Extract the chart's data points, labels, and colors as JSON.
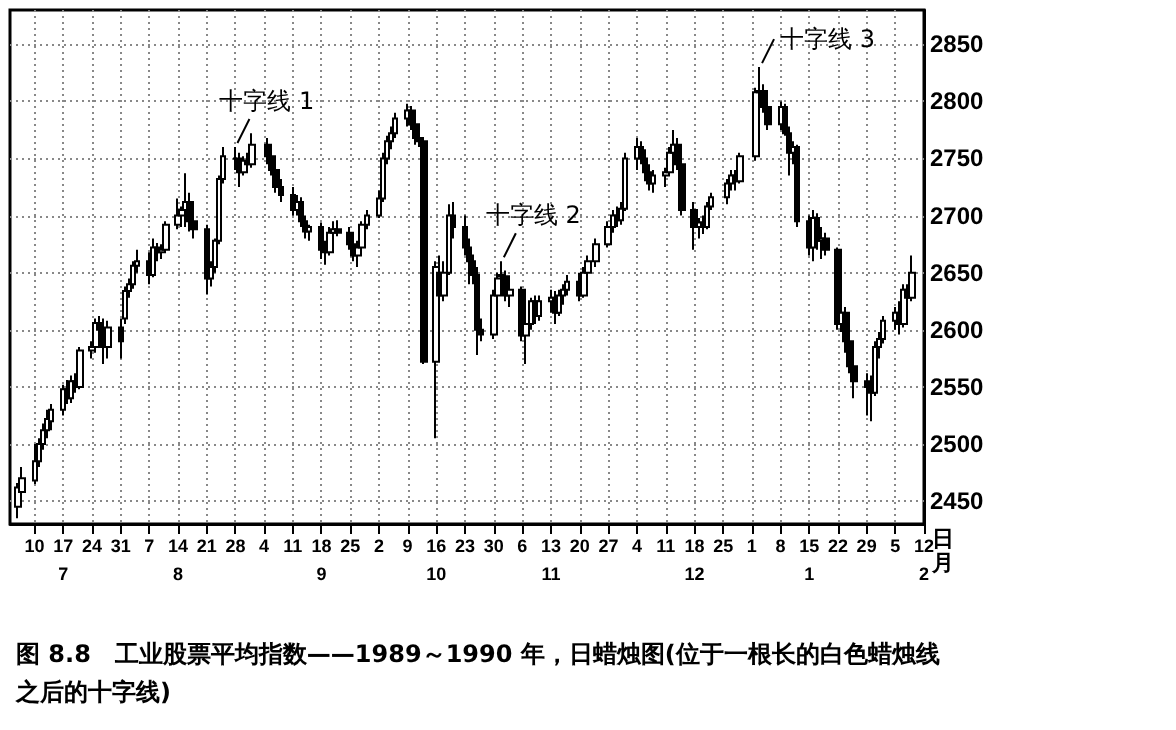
{
  "chart_data": {
    "type": "candlestick",
    "title": "图 8.8　工业股票平均指数——1989～1990 年，日蜡烛图(位于一根长的白色蜡烛线之后的十字线)",
    "xlabel": "日月",
    "color": "#000000",
    "x": [
      "1989-07-06",
      "1989-07-07",
      "1989-07-10",
      "1989-07-11",
      "1989-07-12",
      "1989-07-13",
      "1989-07-14",
      "1989-07-17",
      "1989-07-18",
      "1989-07-19",
      "1989-07-20",
      "1989-07-21",
      "1989-07-24",
      "1989-07-25",
      "1989-07-26",
      "1989-07-27",
      "1989-07-28",
      "1989-07-31",
      "1989-08-01",
      "1989-08-02",
      "1989-08-03",
      "1989-08-04",
      "1989-08-07",
      "1989-08-08",
      "1989-08-09",
      "1989-08-10",
      "1989-08-11",
      "1989-08-14",
      "1989-08-15",
      "1989-08-16",
      "1989-08-17",
      "1989-08-18",
      "1989-08-21",
      "1989-08-22",
      "1989-08-23",
      "1989-08-24",
      "1989-08-25",
      "1989-08-28",
      "1989-08-29",
      "1989-08-30",
      "1989-08-31",
      "1989-09-01",
      "1989-09-05",
      "1989-09-06",
      "1989-09-07",
      "1989-09-08",
      "1989-09-11",
      "1989-09-12",
      "1989-09-13",
      "1989-09-14",
      "1989-09-15",
      "1989-09-18",
      "1989-09-19",
      "1989-09-20",
      "1989-09-21",
      "1989-09-22",
      "1989-09-25",
      "1989-09-26",
      "1989-09-27",
      "1989-09-28",
      "1989-09-29",
      "1989-10-02",
      "1989-10-03",
      "1989-10-04",
      "1989-10-05",
      "1989-10-06",
      "1989-10-09",
      "1989-10-10",
      "1989-10-11",
      "1989-10-12",
      "1989-10-13",
      "1989-10-16",
      "1989-10-17",
      "1989-10-18",
      "1989-10-19",
      "1989-10-20",
      "1989-10-23",
      "1989-10-24",
      "1989-10-25",
      "1989-10-26",
      "1989-10-27",
      "1989-10-30",
      "1989-10-31",
      "1989-11-01",
      "1989-11-02",
      "1989-11-03",
      "1989-11-06",
      "1989-11-07",
      "1989-11-08",
      "1989-11-09",
      "1989-11-10",
      "1989-11-13",
      "1989-11-14",
      "1989-11-15",
      "1989-11-16",
      "1989-11-17",
      "1989-11-20",
      "1989-11-21",
      "1989-11-22",
      "1989-11-24",
      "1989-11-27",
      "1989-11-28",
      "1989-11-29",
      "1989-11-30",
      "1989-12-01",
      "1989-12-04",
      "1989-12-05",
      "1989-12-06",
      "1989-12-07",
      "1989-12-08",
      "1989-12-11",
      "1989-12-12",
      "1989-12-13",
      "1989-12-14",
      "1989-12-15",
      "1989-12-18",
      "1989-12-19",
      "1989-12-20",
      "1989-12-21",
      "1989-12-22",
      "1989-12-26",
      "1989-12-27",
      "1989-12-28",
      "1989-12-29",
      "1990-01-02",
      "1990-01-03",
      "1990-01-04",
      "1990-01-05",
      "1990-01-08",
      "1990-01-09",
      "1990-01-10",
      "1990-01-11",
      "1990-01-12",
      "1990-01-15",
      "1990-01-16",
      "1990-01-17",
      "1990-01-18",
      "1990-01-19",
      "1990-01-22",
      "1990-01-23",
      "1990-01-24",
      "1990-01-25",
      "1990-01-26",
      "1990-01-29",
      "1990-01-30",
      "1990-01-31",
      "1990-02-01",
      "1990-02-02",
      "1990-02-05",
      "1990-02-06",
      "1990-02-07",
      "1990-02-08",
      "1990-02-09"
    ],
    "ohlc": [
      [
        2445,
        2466,
        2435,
        2462
      ],
      [
        2458,
        2480,
        2452,
        2470
      ],
      [
        2468,
        2500,
        2465,
        2485
      ],
      [
        2485,
        2505,
        2480,
        2500
      ],
      [
        2500,
        2518,
        2495,
        2512
      ],
      [
        2512,
        2530,
        2505,
        2522
      ],
      [
        2520,
        2535,
        2512,
        2530
      ],
      [
        2530,
        2552,
        2525,
        2548
      ],
      [
        2548,
        2556,
        2535,
        2540
      ],
      [
        2540,
        2560,
        2536,
        2555
      ],
      [
        2555,
        2562,
        2545,
        2550
      ],
      [
        2550,
        2585,
        2548,
        2582
      ],
      [
        2582,
        2590,
        2575,
        2585
      ],
      [
        2585,
        2610,
        2580,
        2606
      ],
      [
        2606,
        2612,
        2595,
        2600
      ],
      [
        2600,
        2610,
        2570,
        2585
      ],
      [
        2585,
        2608,
        2575,
        2602
      ],
      [
        2602,
        2610,
        2575,
        2590
      ],
      [
        2610,
        2638,
        2605,
        2634
      ],
      [
        2634,
        2645,
        2628,
        2640
      ],
      [
        2640,
        2660,
        2636,
        2656
      ],
      [
        2656,
        2670,
        2650,
        2660
      ],
      [
        2660,
        2668,
        2640,
        2648
      ],
      [
        2648,
        2680,
        2646,
        2672
      ],
      [
        2672,
        2676,
        2660,
        2668
      ],
      [
        2668,
        2675,
        2662,
        2670
      ],
      [
        2670,
        2695,
        2668,
        2692
      ],
      [
        2692,
        2715,
        2688,
        2700
      ],
      [
        2700,
        2708,
        2690,
        2705
      ],
      [
        2705,
        2737,
        2690,
        2712
      ],
      [
        2712,
        2720,
        2686,
        2695
      ],
      [
        2695,
        2700,
        2680,
        2688
      ],
      [
        2688,
        2692,
        2631,
        2645
      ],
      [
        2645,
        2660,
        2638,
        2655
      ],
      [
        2655,
        2680,
        2650,
        2678
      ],
      [
        2678,
        2735,
        2675,
        2732
      ],
      [
        2732,
        2760,
        2728,
        2752
      ],
      [
        2750,
        2760,
        2740,
        2750
      ],
      [
        2750,
        2755,
        2725,
        2738
      ],
      [
        2738,
        2752,
        2735,
        2748
      ],
      [
        2748,
        2755,
        2740,
        2745
      ],
      [
        2745,
        2772,
        2742,
        2762
      ],
      [
        2762,
        2768,
        2745,
        2752
      ],
      [
        2752,
        2758,
        2735,
        2740
      ],
      [
        2740,
        2745,
        2720,
        2725
      ],
      [
        2725,
        2732,
        2712,
        2718
      ],
      [
        2718,
        2725,
        2700,
        2705
      ],
      [
        2705,
        2718,
        2700,
        2712
      ],
      [
        2712,
        2716,
        2690,
        2695
      ],
      [
        2695,
        2700,
        2680,
        2686
      ],
      [
        2686,
        2692,
        2678,
        2690
      ],
      [
        2690,
        2694,
        2662,
        2670
      ],
      [
        2670,
        2678,
        2657,
        2668
      ],
      [
        2668,
        2690,
        2665,
        2685
      ],
      [
        2685,
        2695,
        2680,
        2688
      ],
      [
        2688,
        2696,
        2682,
        2685
      ],
      [
        2685,
        2690,
        2670,
        2675
      ],
      [
        2675,
        2684,
        2660,
        2665
      ],
      [
        2665,
        2678,
        2655,
        2672
      ],
      [
        2672,
        2695,
        2670,
        2692
      ],
      [
        2692,
        2705,
        2688,
        2700
      ],
      [
        2700,
        2722,
        2698,
        2715
      ],
      [
        2715,
        2755,
        2712,
        2750
      ],
      [
        2750,
        2770,
        2745,
        2765
      ],
      [
        2765,
        2778,
        2758,
        2772
      ],
      [
        2772,
        2790,
        2768,
        2785
      ],
      [
        2785,
        2798,
        2778,
        2792
      ],
      [
        2792,
        2796,
        2775,
        2780
      ],
      [
        2780,
        2784,
        2762,
        2768
      ],
      [
        2768,
        2775,
        2760,
        2765
      ],
      [
        2765,
        2768,
        2570,
        2572
      ],
      [
        2572,
        2660,
        2505,
        2655
      ],
      [
        2650,
        2665,
        2610,
        2630
      ],
      [
        2630,
        2660,
        2625,
        2650
      ],
      [
        2650,
        2710,
        2648,
        2700
      ],
      [
        2700,
        2712,
        2680,
        2690
      ],
      [
        2690,
        2700,
        2665,
        2672
      ],
      [
        2672,
        2680,
        2640,
        2660
      ],
      [
        2660,
        2666,
        2640,
        2648
      ],
      [
        2648,
        2655,
        2578,
        2600
      ],
      [
        2600,
        2610,
        2590,
        2596
      ],
      [
        2596,
        2635,
        2592,
        2630
      ],
      [
        2630,
        2650,
        2625,
        2645
      ],
      [
        2648,
        2660,
        2635,
        2647
      ],
      [
        2647,
        2652,
        2625,
        2630
      ],
      [
        2630,
        2640,
        2620,
        2635
      ],
      [
        2635,
        2638,
        2590,
        2595
      ],
      [
        2595,
        2610,
        2570,
        2605
      ],
      [
        2605,
        2628,
        2600,
        2625
      ],
      [
        2625,
        2630,
        2605,
        2612
      ],
      [
        2612,
        2630,
        2608,
        2625
      ],
      [
        2625,
        2635,
        2615,
        2628
      ],
      [
        2628,
        2634,
        2605,
        2615
      ],
      [
        2615,
        2635,
        2612,
        2630
      ],
      [
        2630,
        2640,
        2622,
        2635
      ],
      [
        2635,
        2648,
        2630,
        2642
      ],
      [
        2642,
        2650,
        2625,
        2630
      ],
      [
        2630,
        2655,
        2628,
        2650
      ],
      [
        2650,
        2665,
        2645,
        2660
      ],
      [
        2660,
        2680,
        2655,
        2675
      ],
      [
        2675,
        2695,
        2672,
        2690
      ],
      [
        2690,
        2705,
        2685,
        2700
      ],
      [
        2700,
        2708,
        2690,
        2696
      ],
      [
        2696,
        2712,
        2692,
        2706
      ],
      [
        2706,
        2755,
        2704,
        2750
      ],
      [
        2750,
        2768,
        2740,
        2760
      ],
      [
        2760,
        2765,
        2745,
        2750
      ],
      [
        2750,
        2758,
        2730,
        2738
      ],
      [
        2738,
        2745,
        2722,
        2728
      ],
      [
        2728,
        2740,
        2720,
        2735
      ],
      [
        2735,
        2742,
        2725,
        2738
      ],
      [
        2738,
        2760,
        2735,
        2755
      ],
      [
        2755,
        2775,
        2750,
        2762
      ],
      [
        2762,
        2768,
        2740,
        2745
      ],
      [
        2745,
        2750,
        2700,
        2705
      ],
      [
        2705,
        2712,
        2670,
        2690
      ],
      [
        2690,
        2698,
        2680,
        2694
      ],
      [
        2694,
        2700,
        2684,
        2690
      ],
      [
        2690,
        2712,
        2688,
        2708
      ],
      [
        2708,
        2720,
        2705,
        2716
      ],
      [
        2716,
        2732,
        2710,
        2728
      ],
      [
        2728,
        2740,
        2722,
        2735
      ],
      [
        2735,
        2740,
        2722,
        2730
      ],
      [
        2730,
        2755,
        2728,
        2752
      ],
      [
        2752,
        2812,
        2748,
        2808
      ],
      [
        2808,
        2830,
        2798,
        2809
      ],
      [
        2809,
        2815,
        2790,
        2795
      ],
      [
        2795,
        2800,
        2775,
        2780
      ],
      [
        2780,
        2800,
        2775,
        2795
      ],
      [
        2795,
        2798,
        2770,
        2772
      ],
      [
        2772,
        2778,
        2735,
        2755
      ],
      [
        2755,
        2765,
        2745,
        2760
      ],
      [
        2760,
        2762,
        2690,
        2695
      ],
      [
        2695,
        2700,
        2665,
        2672
      ],
      [
        2672,
        2705,
        2660,
        2698
      ],
      [
        2698,
        2702,
        2670,
        2678
      ],
      [
        2678,
        2690,
        2662,
        2680
      ],
      [
        2680,
        2685,
        2665,
        2670
      ],
      [
        2670,
        2672,
        2600,
        2605
      ],
      [
        2605,
        2625,
        2598,
        2615
      ],
      [
        2615,
        2620,
        2580,
        2590
      ],
      [
        2590,
        2600,
        2562,
        2568
      ],
      [
        2568,
        2575,
        2540,
        2555
      ],
      [
        2555,
        2562,
        2525,
        2550
      ],
      [
        2550,
        2560,
        2520,
        2545
      ],
      [
        2545,
        2590,
        2542,
        2585
      ],
      [
        2585,
        2598,
        2575,
        2592
      ],
      [
        2592,
        2612,
        2588,
        2608
      ],
      [
        2608,
        2620,
        2600,
        2615
      ],
      [
        2615,
        2625,
        2596,
        2605
      ],
      [
        2605,
        2640,
        2602,
        2635
      ],
      [
        2635,
        2640,
        2620,
        2628
      ],
      [
        2628,
        2665,
        2625,
        2650
      ]
    ],
    "xlim": [
      "1989-07-04",
      "1990-02-12"
    ],
    "xticks": [
      {
        "value": "1989-07-10",
        "label": "10"
      },
      {
        "value": "1989-07-17",
        "label": "17\n7"
      },
      {
        "value": "1989-07-24",
        "label": "24"
      },
      {
        "value": "1989-07-31",
        "label": "31"
      },
      {
        "value": "1989-08-07",
        "label": "7"
      },
      {
        "value": "1989-08-14",
        "label": "14\n8"
      },
      {
        "value": "1989-08-21",
        "label": "21"
      },
      {
        "value": "1989-08-28",
        "label": "28"
      },
      {
        "value": "1989-09-04",
        "label": "4"
      },
      {
        "value": "1989-09-11",
        "label": "11"
      },
      {
        "value": "1989-09-18",
        "label": "18\n9"
      },
      {
        "value": "1989-09-25",
        "label": "25"
      },
      {
        "value": "1989-10-02",
        "label": "2"
      },
      {
        "value": "1989-10-09",
        "label": "9"
      },
      {
        "value": "1989-10-16",
        "label": "16\n10"
      },
      {
        "value": "1989-10-23",
        "label": "23"
      },
      {
        "value": "1989-10-30",
        "label": "30"
      },
      {
        "value": "1989-11-06",
        "label": "6"
      },
      {
        "value": "1989-11-13",
        "label": "13\n11"
      },
      {
        "value": "1989-11-20",
        "label": "20"
      },
      {
        "value": "1989-11-27",
        "label": "27"
      },
      {
        "value": "1989-12-04",
        "label": "4"
      },
      {
        "value": "1989-12-11",
        "label": "11"
      },
      {
        "value": "1989-12-18",
        "label": "18\n12"
      },
      {
        "value": "1989-12-25",
        "label": "25"
      },
      {
        "value": "1990-01-01",
        "label": "1"
      },
      {
        "value": "1990-01-08",
        "label": "8"
      },
      {
        "value": "1990-01-15",
        "label": "15\n1"
      },
      {
        "value": "1990-01-22",
        "label": "22"
      },
      {
        "value": "1990-01-29",
        "label": "29"
      },
      {
        "value": "1990-02-05",
        "label": "5"
      },
      {
        "value": "1990-02-12",
        "label": "12\n2"
      }
    ],
    "ylim": [
      2430,
      2880
    ],
    "yticks": [
      2450,
      2500,
      2550,
      2600,
      2650,
      2700,
      2750,
      2800,
      2850
    ],
    "grid": true,
    "annotations": [
      {
        "text": "十字线 1",
        "x": "1989-08-28",
        "y": 2760
      },
      {
        "text": "十字线 2",
        "x": "1989-11-01",
        "y": 2660
      },
      {
        "text": "十字线 3",
        "x": "1990-01-03",
        "y": 2830
      }
    ]
  }
}
